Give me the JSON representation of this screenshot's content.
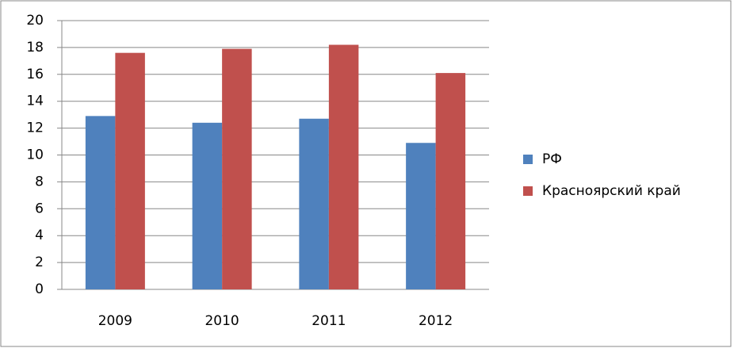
{
  "chart_data": {
    "type": "bar",
    "categories": [
      "2009",
      "2010",
      "2011",
      "2012"
    ],
    "series": [
      {
        "name": "РФ",
        "color": "#4f81bd",
        "values": [
          12.9,
          12.4,
          12.7,
          10.9
        ]
      },
      {
        "name": "Красноярский край",
        "color": "#c0504d",
        "values": [
          17.6,
          17.9,
          18.2,
          16.1
        ]
      }
    ],
    "ylim": [
      0,
      20
    ],
    "yticks": [
      0,
      2,
      4,
      6,
      8,
      10,
      12,
      14,
      16,
      18,
      20
    ],
    "grid": true,
    "legend": "right"
  }
}
